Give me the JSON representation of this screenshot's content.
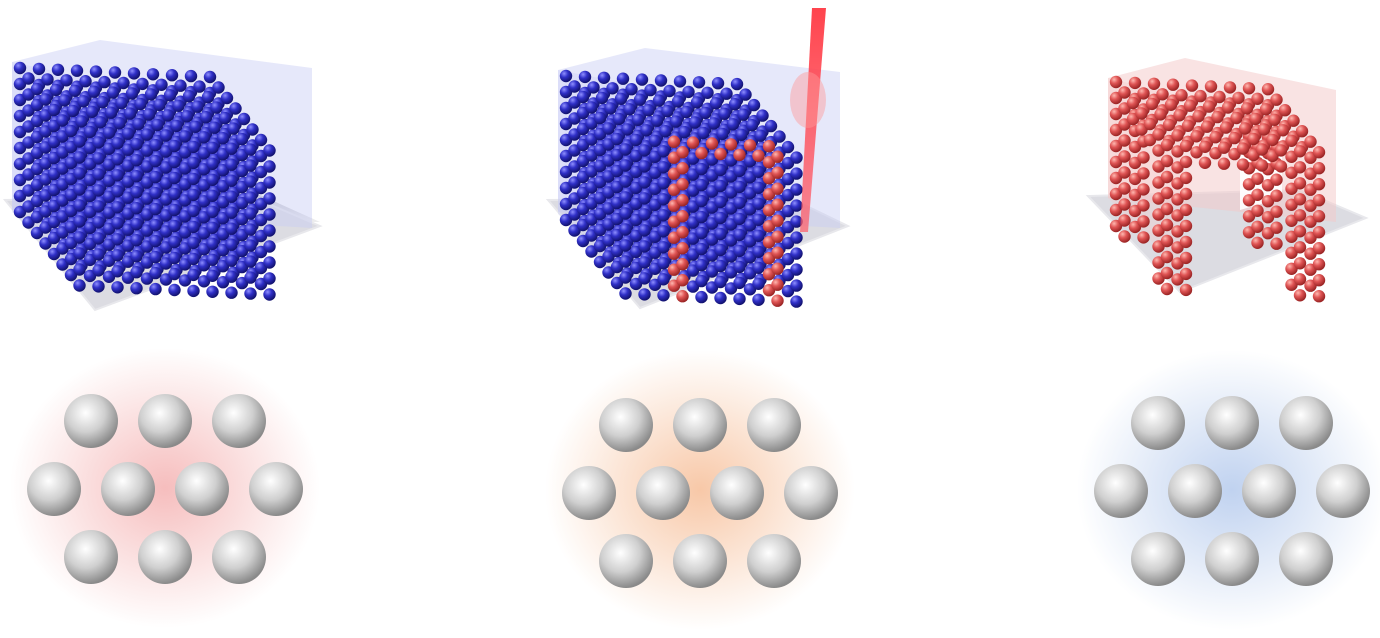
{
  "figure": {
    "panels": [
      {
        "id": "panel-1",
        "particle_color": "#2a2ab8",
        "state": "all-blue"
      },
      {
        "id": "panel-2",
        "particle_color": "#2a2ab8",
        "highlight_color": "#e06a6a",
        "laser_color": "#ee3340",
        "state": "laser-writing"
      },
      {
        "id": "panel-3",
        "particle_color": "#e05555",
        "state": "red-structure"
      }
    ],
    "clusters": [
      {
        "id": "cluster-1",
        "glow_color": "#f7c4c4",
        "sphere_color": "#b9b9b9"
      },
      {
        "id": "cluster-2",
        "glow_color": "#f9cfb0",
        "sphere_color": "#b9b9b9"
      },
      {
        "id": "cluster-3",
        "glow_color": "#c9d9f2",
        "sphere_color": "#b9b9b9"
      }
    ],
    "platform_color": "#d9d9de",
    "box_color": "#c8cbf5"
  }
}
